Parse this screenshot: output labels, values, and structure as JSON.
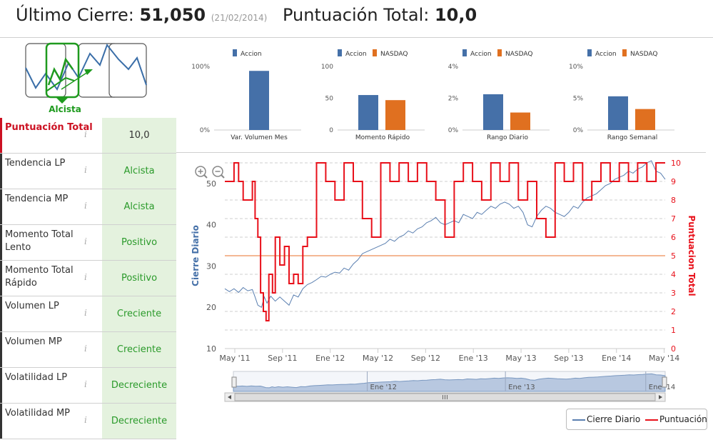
{
  "header": {
    "last_close_label": "Último Cierre:",
    "last_close_value": "51,050",
    "last_close_date": "(21/02/2014)",
    "score_label": "Puntuación Total:",
    "score_value": "10,0"
  },
  "trend_selector": {
    "label": "Alcista",
    "selected_index": 1
  },
  "rows": [
    {
      "label": "Puntuación Total",
      "value": "10,0"
    },
    {
      "label": "Tendencia LP",
      "value": "Alcista"
    },
    {
      "label": "Tendencia MP",
      "value": "Alcista"
    },
    {
      "label": "Momento Total Lento",
      "value": "Positivo"
    },
    {
      "label": "Momento Total Rápido",
      "value": "Positivo"
    },
    {
      "label": "Volumen LP",
      "value": "Creciente"
    },
    {
      "label": "Volumen MP",
      "value": "Creciente"
    },
    {
      "label": "Volatilidad LP",
      "value": "Decreciente"
    },
    {
      "label": "Volatilidad MP",
      "value": "Decreciente"
    }
  ],
  "info_icon": "i",
  "colors": {
    "accion": "#4570a8",
    "nasdaq": "#e07020",
    "score_line": "#e8101a",
    "close_line": "#5a7fb0",
    "midline": "#f0a070",
    "good_text": "#2a9a2a",
    "value_bg": "#e4f2de"
  },
  "icons": [
    "zoom-in-icon",
    "zoom-out-icon",
    "info-icon"
  ],
  "chart_data": [
    {
      "type": "bar",
      "title": "",
      "categories": [
        "Var. Volumen Mes"
      ],
      "series": [
        {
          "name": "Accion",
          "values": [
            93
          ]
        }
      ],
      "yticks": [
        "0%",
        "100%"
      ],
      "ylim": [
        0,
        100
      ]
    },
    {
      "type": "bar",
      "categories": [
        "Momento Rápido"
      ],
      "series": [
        {
          "name": "Accion",
          "values": [
            55
          ]
        },
        {
          "name": "NASDAQ",
          "values": [
            47
          ]
        }
      ],
      "yticks": [
        "0",
        "50",
        "100"
      ],
      "ylim": [
        0,
        100
      ]
    },
    {
      "type": "bar",
      "categories": [
        "Rango Diario"
      ],
      "series": [
        {
          "name": "Accion",
          "values": [
            2.25
          ]
        },
        {
          "name": "NASDAQ",
          "values": [
            1.1
          ]
        }
      ],
      "yticks": [
        "0%",
        "2%",
        "4%"
      ],
      "ylim": [
        0,
        4
      ]
    },
    {
      "type": "bar",
      "categories": [
        "Rango Semanal"
      ],
      "series": [
        {
          "name": "Accion",
          "values": [
            5.3
          ]
        },
        {
          "name": "NASDAQ",
          "values": [
            3.3
          ]
        }
      ],
      "yticks": [
        "0%",
        "5%",
        "10%"
      ],
      "ylim": [
        0,
        10
      ]
    },
    {
      "type": "line",
      "ylabel": "Cierre Diario",
      "y2label": "Puntuacion Total",
      "yticks": [
        "10",
        "20",
        "30",
        "40",
        "50"
      ],
      "y2ticks": [
        "0",
        "1",
        "2",
        "3",
        "4",
        "5",
        "6",
        "7",
        "8",
        "9",
        "10"
      ],
      "ylim": [
        10,
        55
      ],
      "y2lim": [
        0,
        10
      ],
      "xticks": [
        "May '11",
        "Sep '11",
        "Ene '12",
        "May '12",
        "Sep '12",
        "Ene '13",
        "May '13",
        "Sep '13",
        "Ene '14",
        "May '14"
      ],
      "navigator_ticks": [
        "Ene '12",
        "Ene '13",
        "Ene '14"
      ],
      "reference_line": 5,
      "series": [
        {
          "name": "Cierre Diario",
          "x": [
            0,
            0.5,
            1,
            1.5,
            2,
            2.5,
            3,
            3.3,
            3.6,
            4,
            4.3,
            4.6,
            5,
            5.5,
            6,
            6.5,
            7,
            7.5,
            8,
            8.5,
            9,
            9.5,
            10,
            10.5,
            11,
            11.5,
            12,
            12.5,
            13,
            13.5,
            14,
            14.5,
            15,
            15.5,
            16,
            16.5,
            17,
            17.5,
            18,
            18.5,
            19,
            19.5,
            20,
            20.5,
            21,
            21.5,
            22,
            22.5,
            23,
            23.5,
            24,
            24.5,
            25,
            25.5,
            26,
            26.5,
            27,
            27.5,
            28,
            28.5,
            29,
            29.5,
            30,
            30.5,
            31,
            31.5,
            32,
            32.5,
            33,
            33.5,
            34,
            34.5,
            35,
            35.5,
            36,
            36.5,
            37,
            37.5,
            38,
            38.5,
            39,
            39.5,
            40,
            40.5,
            41,
            41.5,
            42,
            42.5,
            43,
            43.5,
            44,
            44.5,
            45,
            45.5,
            46,
            46.5,
            47,
            47.5,
            48
          ],
          "values": [
            24.5,
            23.8,
            24.5,
            23.6,
            24.8,
            24,
            24.3,
            22.5,
            20.5,
            20,
            22.5,
            21,
            22.7,
            21.5,
            22.5,
            21.5,
            20.5,
            23,
            22.5,
            24.5,
            25.5,
            26,
            26.7,
            27.5,
            27.3,
            28,
            28.5,
            28.3,
            29.5,
            29,
            30.5,
            31.5,
            33,
            33.5,
            34,
            34.5,
            35,
            35.5,
            36.5,
            36,
            37,
            37.5,
            38.5,
            38,
            39,
            39.5,
            40.5,
            41,
            41.8,
            40.5,
            40,
            40.5,
            41,
            40.5,
            42.5,
            42,
            41.5,
            43,
            42.5,
            43.5,
            44.5,
            44,
            45,
            45.5,
            45,
            44,
            44.5,
            43,
            40,
            39.5,
            42,
            43.5,
            44.5,
            44,
            43,
            42.5,
            42,
            43,
            44.5,
            44,
            45.5,
            46.5,
            47,
            47.5,
            48.5,
            49.5,
            50,
            51,
            51.5,
            52,
            53,
            52.5,
            53.5,
            54,
            55,
            55.5,
            53,
            52.5,
            51
          ]
        },
        {
          "name": "Puntuación",
          "x": [
            0,
            1,
            1.5,
            2,
            3,
            3.3,
            3.6,
            3.9,
            4.2,
            4.5,
            4.8,
            5.2,
            5.5,
            6,
            6.5,
            7,
            7.5,
            8,
            8.5,
            9,
            10,
            11,
            12,
            13,
            14,
            15,
            16,
            17,
            18,
            19,
            20,
            21,
            22,
            23,
            24,
            25,
            26,
            27,
            28,
            29,
            30,
            31,
            32,
            33,
            34,
            35,
            36,
            37,
            38,
            39,
            40,
            41,
            42,
            43,
            44,
            45,
            46,
            47,
            48
          ],
          "values": [
            9,
            10,
            9,
            8,
            9,
            7,
            6,
            3,
            2,
            1.5,
            4,
            3,
            6,
            4.5,
            5.5,
            3.5,
            4,
            3.5,
            5.5,
            6,
            10,
            9,
            8,
            10,
            9,
            7,
            6,
            10,
            9,
            10,
            9,
            10,
            9,
            8,
            6,
            9,
            10,
            9,
            8,
            10,
            9,
            10,
            8,
            9,
            7,
            6,
            10,
            9,
            10,
            8,
            9,
            10,
            9,
            10,
            9,
            10,
            9,
            10,
            10
          ]
        }
      ]
    }
  ],
  "legend": {
    "close": "Cierre Diario",
    "score": "Puntuación"
  }
}
